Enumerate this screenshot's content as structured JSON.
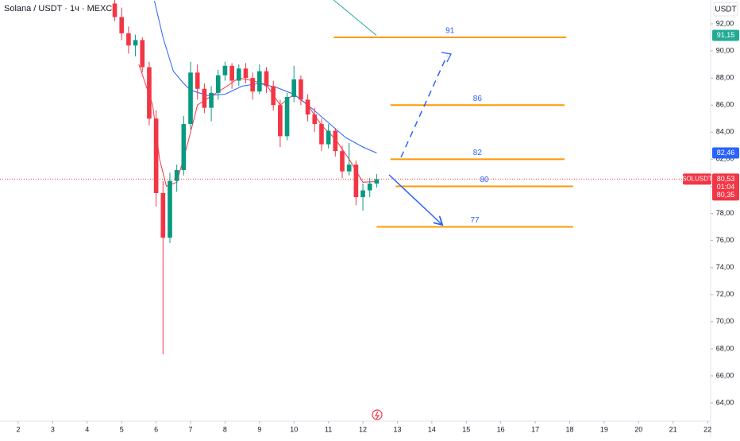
{
  "chart_data": {
    "type": "candlestick",
    "title": "Solana / USDT · 1ч · MEXC",
    "y_unit": "USDT",
    "xlim": [
      1.47,
      22.09
    ],
    "xticks": [
      2,
      3,
      4,
      5,
      6,
      7,
      8,
      9,
      10,
      11,
      12,
      13,
      14,
      15,
      16,
      17,
      18,
      19,
      20,
      21,
      22
    ],
    "ylim": [
      62.36,
      93.76
    ],
    "yticks": [
      {
        "value": 92,
        "label": "92,00"
      },
      {
        "value": 90,
        "label": "90,00"
      },
      {
        "value": 88,
        "label": "88,00"
      },
      {
        "value": 86,
        "label": "86,00"
      },
      {
        "value": 84,
        "label": "84,00"
      },
      {
        "value": 82,
        "label": "82,00"
      },
      {
        "value": 80,
        "label": "80,00"
      },
      {
        "value": 78,
        "label": "78,00"
      },
      {
        "value": 76,
        "label": "76,00"
      },
      {
        "value": 74,
        "label": "74,00"
      },
      {
        "value": 72,
        "label": "72,00"
      },
      {
        "value": 70,
        "label": "70,00"
      },
      {
        "value": 68,
        "label": "68,00"
      },
      {
        "value": 66,
        "label": "66,00"
      },
      {
        "value": 64,
        "label": "64,00"
      }
    ],
    "grid": false,
    "up_color": "#089981",
    "down_color": "#f23645",
    "x": [
      4.8,
      5.0,
      5.2,
      5.4,
      5.6,
      5.8,
      6.0,
      6.2,
      6.4,
      6.6,
      6.8,
      7.0,
      7.2,
      7.4,
      7.6,
      7.8,
      8.0,
      8.2,
      8.4,
      8.6,
      8.8,
      9.0,
      9.2,
      9.4,
      9.6,
      9.8,
      10.0,
      10.2,
      10.4,
      10.6,
      10.8,
      11.0,
      11.2,
      11.4,
      11.6,
      11.8,
      12.0,
      12.2,
      12.4
    ],
    "open": [
      93.5,
      92.5,
      91.3,
      90.4,
      90.8,
      88.8,
      85,
      79.5,
      76.2,
      80.4,
      81.2,
      84.6,
      88.4,
      87.2,
      85.8,
      86.9,
      88.2,
      88.9,
      87.8,
      88.7,
      88,
      87,
      88.5,
      87.4,
      86,
      83.7,
      86.6,
      87.9,
      86.4,
      85.3,
      84.6,
      83.1,
      84.1,
      82.6,
      81.1,
      81.6,
      79.2,
      79.7,
      80.2
    ],
    "high": [
      94,
      93.2,
      91.8,
      91.2,
      91,
      89.2,
      85.6,
      80.4,
      81,
      81.6,
      85.2,
      89.2,
      89,
      87.6,
      87.4,
      88.6,
      89.2,
      89.1,
      89,
      89.1,
      88.4,
      89,
      88.8,
      87.8,
      86.4,
      86.9,
      88.9,
      88.2,
      86.8,
      85.8,
      85,
      84.6,
      84.3,
      83,
      83.2,
      81.9,
      80.2,
      80.6,
      80.9
    ],
    "low": [
      92.2,
      90.8,
      89.8,
      89.6,
      88.4,
      84.5,
      78.5,
      67.6,
      75.8,
      79.6,
      80.8,
      84.2,
      86.4,
      85.4,
      84.8,
      86.4,
      87.8,
      87.2,
      87.4,
      87.6,
      86.4,
      86.8,
      86.9,
      85.6,
      82.9,
      83.4,
      86.2,
      86,
      84.8,
      84,
      82.6,
      82.8,
      82.2,
      80.6,
      80.8,
      78.6,
      78.2,
      79.2,
      79.9
    ],
    "close": [
      92.5,
      91.3,
      90.4,
      90.8,
      88.8,
      85,
      79.5,
      76.2,
      80.4,
      81.2,
      84.6,
      88.4,
      87.2,
      85.8,
      86.9,
      88.2,
      88.9,
      87.8,
      88.7,
      88,
      87,
      88.5,
      87.4,
      86,
      83.7,
      86.6,
      87.9,
      86.4,
      85.3,
      84.6,
      83.1,
      84.1,
      82.6,
      81.1,
      81.6,
      79.2,
      79.7,
      80.2,
      80.53
    ],
    "overlays": [
      {
        "color": "#f23645",
        "x": [
          5.5,
          5.9,
          6.1,
          6.3,
          6.6,
          6.9,
          7.2,
          7.5,
          8.0,
          8.4,
          8.8,
          9.2,
          9.6,
          10.0,
          10.4,
          10.8,
          11.2,
          11.6,
          12.0,
          12.4
        ],
        "values": [
          89,
          86,
          82,
          80,
          80.3,
          83,
          86,
          86.5,
          87.3,
          88,
          87.8,
          87.5,
          86,
          86.8,
          86,
          84.5,
          83.5,
          82,
          80.3,
          80.35
        ]
      },
      {
        "color": "#2962ff",
        "x": [
          5.95,
          6.2,
          6.5,
          6.8,
          7.0,
          7.5,
          8.0,
          8.5,
          9.0,
          9.5,
          10.0,
          10.5,
          11.0,
          11.5,
          12.0,
          12.4
        ],
        "values": [
          93.7,
          91,
          88.5,
          87.6,
          87.1,
          86.7,
          86.8,
          87.4,
          87.6,
          87.3,
          86.8,
          85.8,
          84.7,
          83.6,
          82.9,
          82.46
        ]
      },
      {
        "color": "#22ab94",
        "x": [
          11.15,
          12.39
        ],
        "values": [
          93.76,
          91.15
        ]
      }
    ],
    "levels": [
      {
        "value": 91,
        "from": 11.15,
        "to": 17.9
      },
      {
        "value": 86,
        "from": 12.8,
        "to": 17.85
      },
      {
        "value": 82,
        "from": 12.8,
        "to": 17.85
      },
      {
        "value": 80,
        "from": 12.95,
        "to": 18.1
      },
      {
        "value": 77,
        "from": 12.4,
        "to": 18.1
      }
    ],
    "level_color": "#ff9800",
    "price_tags": [
      {
        "value": 91.15,
        "label": "91,15",
        "color": "#22ab94"
      },
      {
        "value": 82.46,
        "label": "82,46",
        "color": "#2962ff"
      }
    ],
    "current": {
      "symbol": "SOLUSDT",
      "value": 80.53,
      "label": "80,53",
      "countdown": "01:04",
      "color": "#f23645"
    },
    "ma_tag": {
      "value": 80.35,
      "label": "80,35",
      "color": "#f23645"
    }
  }
}
